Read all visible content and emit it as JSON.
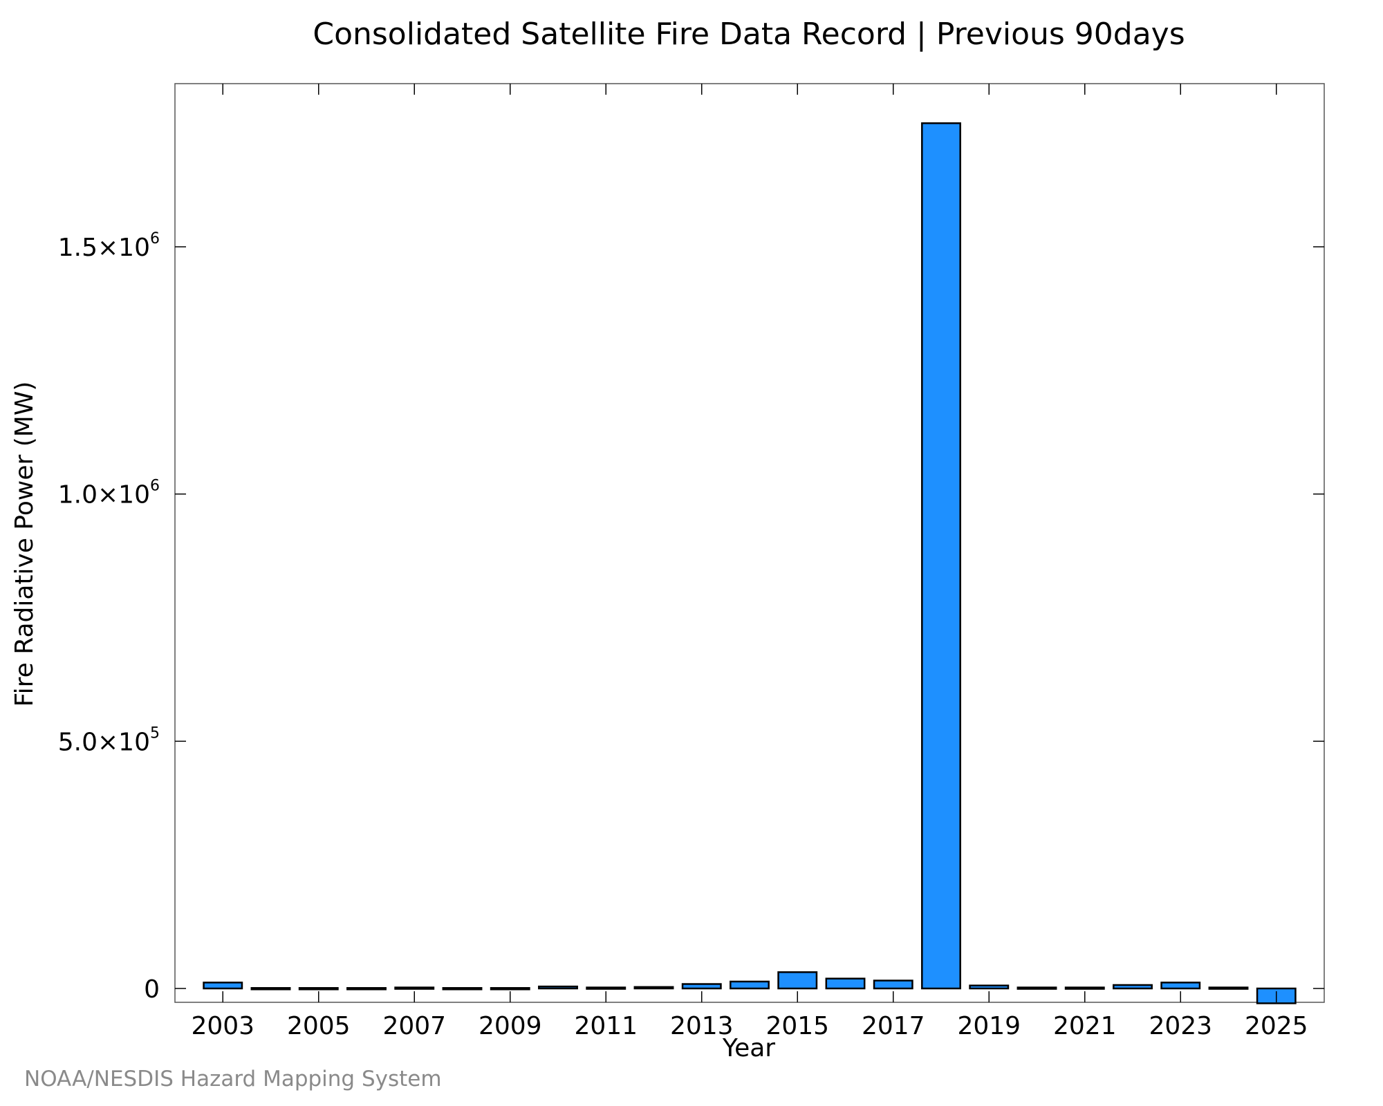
{
  "chart_data": {
    "type": "bar",
    "title": "Consolidated Satellite Fire Data Record | Previous 90days",
    "xlabel": "Year",
    "ylabel": "Fire Radiative Power (MW)",
    "credit": "NOAA/NESDIS Hazard Mapping System",
    "bar_color": "#1e90ff",
    "categories": [
      2003,
      2004,
      2005,
      2006,
      2007,
      2008,
      2009,
      2010,
      2011,
      2012,
      2013,
      2014,
      2015,
      2016,
      2017,
      2018,
      2019,
      2020,
      2021,
      2022,
      2023,
      2024,
      2025
    ],
    "values": [
      12000,
      1000,
      1000,
      1000,
      2000,
      1000,
      1000,
      4000,
      2000,
      3000,
      9000,
      14000,
      33000,
      20000,
      16000,
      1750000,
      6000,
      2000,
      2000,
      7000,
      12000,
      2000,
      -30000
    ],
    "xlim": [
      2002,
      2026
    ],
    "ylim": [
      -28000,
      1830000
    ],
    "x_ticks": [
      {
        "value": 2003,
        "label": "2003"
      },
      {
        "value": 2005,
        "label": "2005"
      },
      {
        "value": 2007,
        "label": "2007"
      },
      {
        "value": 2009,
        "label": "2009"
      },
      {
        "value": 2011,
        "label": "2011"
      },
      {
        "value": 2013,
        "label": "2013"
      },
      {
        "value": 2015,
        "label": "2015"
      },
      {
        "value": 2017,
        "label": "2017"
      },
      {
        "value": 2019,
        "label": "2019"
      },
      {
        "value": 2021,
        "label": "2021"
      },
      {
        "value": 2023,
        "label": "2023"
      },
      {
        "value": 2025,
        "label": "2025"
      }
    ],
    "y_ticks": [
      {
        "value": 0,
        "label": "0",
        "exp": ""
      },
      {
        "value": 500000,
        "label": "5.0×10",
        "exp": "5"
      },
      {
        "value": 1000000,
        "label": "1.0×10",
        "exp": "6"
      },
      {
        "value": 1500000,
        "label": "1.5×10",
        "exp": "6"
      }
    ],
    "grid": false,
    "legend": "none"
  }
}
